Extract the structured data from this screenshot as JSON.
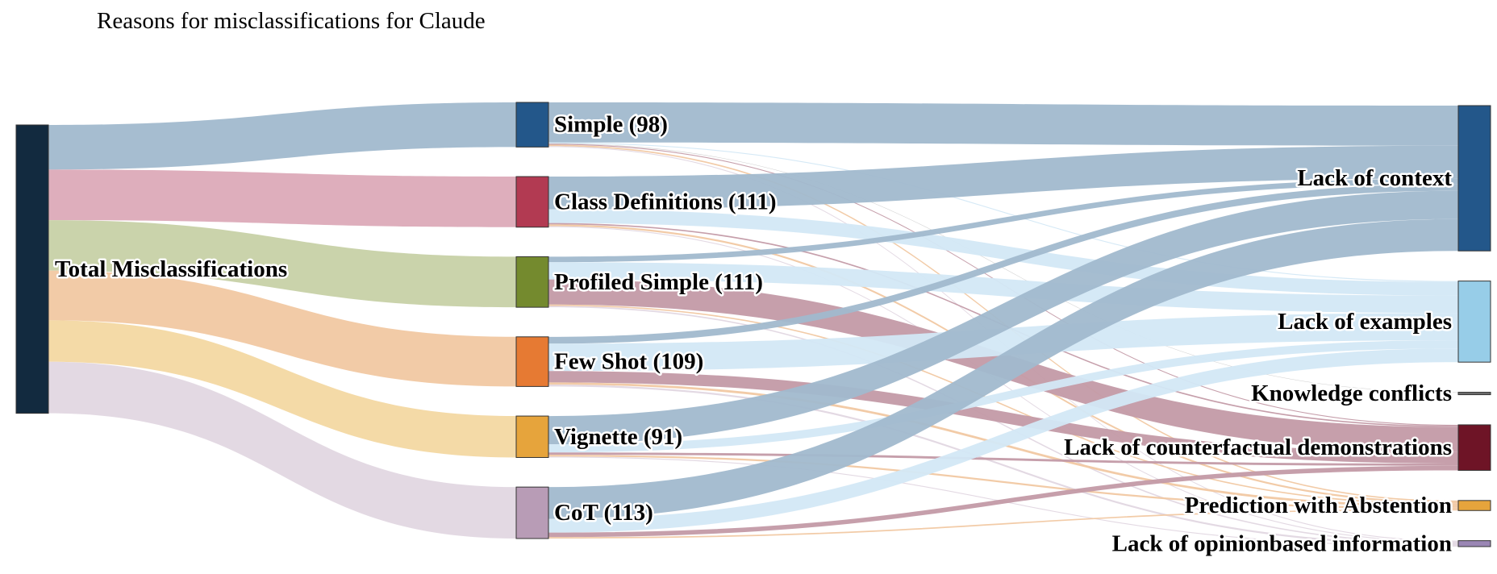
{
  "chart_data": {
    "type": "sankey",
    "title": "Reasons for misclassifications for Claude",
    "source_node": {
      "name": "Total Misclassifications",
      "label": "Total Misclassifications",
      "color": "#122a3f"
    },
    "prompt_nodes": [
      {
        "name": "Simple",
        "label": "Simple (98)",
        "value": 98,
        "color": "#23578a",
        "link_color": "#a1b9ce"
      },
      {
        "name": "Class Definitions",
        "label": "Class Definitions (111)",
        "value": 111,
        "color": "#b23a52",
        "link_color": "#dcaab8"
      },
      {
        "name": "Profiled Simple",
        "label": "Profiled Simple (111)",
        "value": 111,
        "color": "#748a2e",
        "link_color": "#c7d1a6"
      },
      {
        "name": "Few Shot",
        "label": "Few Shot (109)",
        "value": 109,
        "color": "#e67a33",
        "link_color": "#f1c8a2"
      },
      {
        "name": "Vignette",
        "label": "Vignette (91)",
        "value": 91,
        "color": "#e6a43c",
        "link_color": "#f3d8a2"
      },
      {
        "name": "CoT",
        "label": "CoT (113)",
        "value": 113,
        "color": "#b89cb6",
        "link_color": "#e1d7e1"
      }
    ],
    "reason_nodes": [
      {
        "name": "Lack of context",
        "label": "Lack of context",
        "color": "#23578a",
        "link_color": "#a1b9ce"
      },
      {
        "name": "Lack of examples",
        "label": "Lack of examples",
        "color": "#97cde8",
        "link_color": "#d3e8f5"
      },
      {
        "name": "Knowledge conflicts",
        "label": "Knowledge conflicts",
        "color": "#6d6d6d",
        "link_color": "#cccccc"
      },
      {
        "name": "Lack of counterfactual demonstrations",
        "label": "Lack of counterfactual demonstrations",
        "color": "#6e1426",
        "link_color": "#c39aa6"
      },
      {
        "name": "Prediction with Abstention",
        "label": "Prediction with Abstention",
        "color": "#e6a43c",
        "link_color": "#f1c8a2"
      },
      {
        "name": "Lack of opinionbased information",
        "label": "Lack of opinionbased information",
        "color": "#9a86b4",
        "link_color": "#e1d7e1"
      }
    ],
    "flows": [
      {
        "source": "Simple",
        "target": "Lack of context",
        "value": 88
      },
      {
        "source": "Simple",
        "target": "Lack of examples",
        "value": 2
      },
      {
        "source": "Simple",
        "target": "Knowledge conflicts",
        "value": 1
      },
      {
        "source": "Simple",
        "target": "Lack of counterfactual demonstrations",
        "value": 2
      },
      {
        "source": "Simple",
        "target": "Prediction with Abstention",
        "value": 3
      },
      {
        "source": "Simple",
        "target": "Lack of opinionbased information",
        "value": 2
      },
      {
        "source": "Class Definitions",
        "target": "Lack of context",
        "value": 72
      },
      {
        "source": "Class Definitions",
        "target": "Lack of examples",
        "value": 30
      },
      {
        "source": "Class Definitions",
        "target": "Lack of counterfactual demonstrations",
        "value": 3
      },
      {
        "source": "Class Definitions",
        "target": "Prediction with Abstention",
        "value": 4
      },
      {
        "source": "Class Definitions",
        "target": "Lack of opinionbased information",
        "value": 2
      },
      {
        "source": "Profiled Simple",
        "target": "Lack of context",
        "value": 12
      },
      {
        "source": "Profiled Simple",
        "target": "Lack of examples",
        "value": 38
      },
      {
        "source": "Profiled Simple",
        "target": "Lack of counterfactual demonstrations",
        "value": 55
      },
      {
        "source": "Profiled Simple",
        "target": "Prediction with Abstention",
        "value": 3
      },
      {
        "source": "Profiled Simple",
        "target": "Lack of opinionbased information",
        "value": 3
      },
      {
        "source": "Few Shot",
        "target": "Lack of context",
        "value": 15
      },
      {
        "source": "Few Shot",
        "target": "Lack of examples",
        "value": 60
      },
      {
        "source": "Few Shot",
        "target": "Lack of counterfactual demonstrations",
        "value": 25
      },
      {
        "source": "Few Shot",
        "target": "Prediction with Abstention",
        "value": 5
      },
      {
        "source": "Few Shot",
        "target": "Lack of opinionbased information",
        "value": 4
      },
      {
        "source": "Vignette",
        "target": "Lack of context",
        "value": 62
      },
      {
        "source": "Vignette",
        "target": "Lack of examples",
        "value": 18
      },
      {
        "source": "Vignette",
        "target": "Lack of counterfactual demonstrations",
        "value": 5
      },
      {
        "source": "Vignette",
        "target": "Prediction with Abstention",
        "value": 4
      },
      {
        "source": "Vignette",
        "target": "Lack of opinionbased information",
        "value": 2
      },
      {
        "source": "CoT",
        "target": "Lack of context",
        "value": 70
      },
      {
        "source": "CoT",
        "target": "Lack of examples",
        "value": 30
      },
      {
        "source": "CoT",
        "target": "Lack of counterfactual demonstrations",
        "value": 10
      },
      {
        "source": "CoT",
        "target": "Prediction with Abstention",
        "value": 3
      }
    ]
  }
}
